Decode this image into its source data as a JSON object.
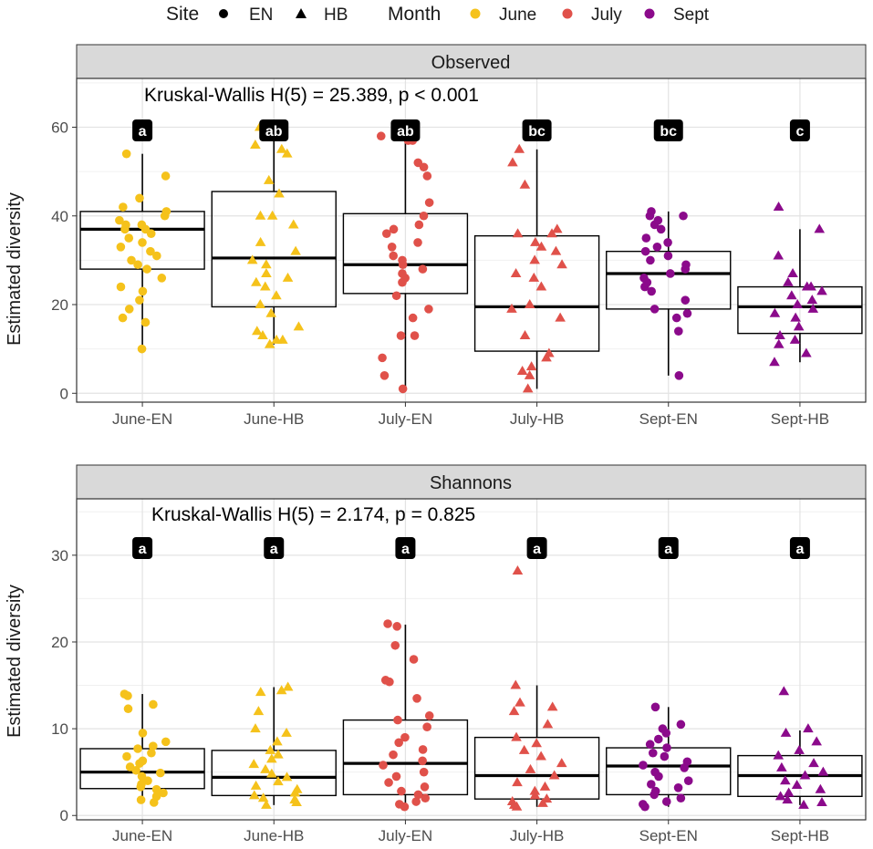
{
  "legend": {
    "site_title": "Site",
    "site_entries": [
      {
        "label": "EN",
        "shape": "circle"
      },
      {
        "label": "HB",
        "shape": "triangle"
      }
    ],
    "month_title": "Month",
    "month_entries": [
      {
        "label": "June",
        "color": "#f5c21b"
      },
      {
        "label": "July",
        "color": "#e0514a"
      },
      {
        "label": "Sept",
        "color": "#8b0a8b"
      }
    ]
  },
  "chart_data": [
    {
      "type": "box",
      "title": "Observed",
      "annotation": "Kruskal-Wallis   H(5) = 25.389, p < 0.001",
      "xlabel": "",
      "ylabel": "Estimated diversity",
      "ylim": [
        -2,
        71
      ],
      "yticks": [
        0,
        20,
        40,
        60
      ],
      "categories": [
        "June-EN",
        "June-HB",
        "July-EN",
        "July-HB",
        "Sept-EN",
        "Sept-HB"
      ],
      "colors": [
        "#f5c21b",
        "#f5c21b",
        "#e0514a",
        "#e0514a",
        "#8b0a8b",
        "#8b0a8b"
      ],
      "shapes": [
        "circle",
        "triangle",
        "circle",
        "triangle",
        "circle",
        "triangle"
      ],
      "letters": [
        "a",
        "ab",
        "ab",
        "bc",
        "bc",
        "c"
      ],
      "boxes": [
        {
          "min": 10,
          "q1": 28,
          "median": 37,
          "q3": 41,
          "max": 54
        },
        {
          "min": 11,
          "q1": 19.5,
          "median": 30.5,
          "q3": 45.5,
          "max": 60
        },
        {
          "min": 1,
          "q1": 22.5,
          "median": 29,
          "q3": 40.5,
          "max": 58
        },
        {
          "min": 1,
          "q1": 9.5,
          "median": 19.5,
          "q3": 35.5,
          "max": 55
        },
        {
          "min": 4,
          "q1": 19,
          "median": 27,
          "q3": 32,
          "max": 41
        },
        {
          "min": 7,
          "q1": 13.5,
          "median": 19.5,
          "q3": 24,
          "max": 37
        }
      ],
      "points": [
        [
          10,
          16,
          17,
          19,
          21,
          23,
          24,
          26,
          28,
          29,
          30,
          31,
          32,
          33,
          34,
          35,
          36,
          37,
          37,
          38,
          38,
          39,
          40,
          41,
          42,
          44,
          49,
          54
        ],
        [
          11,
          12,
          12,
          13,
          14,
          15,
          18,
          20,
          22,
          24,
          25,
          26,
          27,
          29,
          30,
          32,
          34,
          38,
          40,
          40,
          45,
          48,
          54,
          55,
          56,
          60
        ],
        [
          1,
          4,
          8,
          13,
          13,
          17,
          19,
          22,
          25,
          26,
          27,
          28,
          29,
          30,
          31,
          33,
          34,
          36,
          37,
          38,
          40,
          43,
          49,
          51,
          52,
          57,
          57,
          58
        ],
        [
          1,
          4,
          5,
          6,
          8,
          9,
          13,
          17,
          19,
          20,
          24,
          26,
          27,
          29,
          30,
          32,
          33,
          34,
          36,
          36,
          37,
          47,
          52,
          55
        ],
        [
          4,
          14,
          17,
          18,
          19,
          21,
          23,
          24,
          25,
          26,
          27,
          28,
          29,
          30,
          31,
          32,
          33,
          34,
          35,
          37,
          38,
          39,
          40,
          40,
          41
        ],
        [
          7,
          9,
          11,
          12,
          13,
          15,
          17,
          18,
          19,
          20,
          21,
          22,
          23,
          24,
          24,
          25,
          27,
          31,
          37,
          42
        ]
      ]
    },
    {
      "type": "box",
      "title": "Shannons",
      "annotation": "Kruskal-Wallis   H(5) = 2.174, p = 0.825",
      "xlabel": "",
      "ylabel": "Estimated diversity",
      "ylim": [
        -0.5,
        36.5
      ],
      "yticks": [
        0,
        10,
        20,
        30
      ],
      "categories": [
        "June-EN",
        "June-HB",
        "July-EN",
        "July-HB",
        "Sept-EN",
        "Sept-HB"
      ],
      "colors": [
        "#f5c21b",
        "#f5c21b",
        "#e0514a",
        "#e0514a",
        "#8b0a8b",
        "#8b0a8b"
      ],
      "shapes": [
        "circle",
        "triangle",
        "circle",
        "triangle",
        "circle",
        "triangle"
      ],
      "letters": [
        "a",
        "a",
        "a",
        "a",
        "a",
        "a"
      ],
      "boxes": [
        {
          "min": 1.5,
          "q1": 3.1,
          "median": 5,
          "q3": 7.7,
          "max": 14
        },
        {
          "min": 1.2,
          "q1": 2.3,
          "median": 4.4,
          "q3": 7.5,
          "max": 14.8
        },
        {
          "min": 1,
          "q1": 2.4,
          "median": 6,
          "q3": 11,
          "max": 22
        },
        {
          "min": 1,
          "q1": 1.9,
          "median": 4.6,
          "q3": 9,
          "max": 15
        },
        {
          "min": 1,
          "q1": 2.4,
          "median": 5.7,
          "q3": 7.8,
          "max": 12.5
        },
        {
          "min": 1.2,
          "q1": 2.2,
          "median": 4.6,
          "q3": 6.9,
          "max": 9.8
        }
      ],
      "points": [
        [
          1.5,
          1.8,
          2.2,
          2.6,
          3.0,
          3.3,
          3.6,
          4.0,
          4.5,
          4.9,
          5.2,
          5.6,
          6.0,
          6.3,
          6.8,
          7.2,
          7.7,
          8.0,
          8.5,
          9.5,
          12.3,
          12.8,
          13.8,
          14.0
        ],
        [
          1.2,
          1.5,
          1.8,
          2.0,
          2.3,
          2.6,
          3.0,
          3.4,
          3.9,
          4.4,
          4.8,
          5.3,
          5.9,
          6.5,
          7.0,
          7.5,
          8.5,
          9.5,
          10.0,
          12.0,
          14.2,
          14.4,
          14.8
        ],
        [
          1,
          1.3,
          1.6,
          2.0,
          2.4,
          2.8,
          3.3,
          3.8,
          4.5,
          5.0,
          5.8,
          6.3,
          7.0,
          7.6,
          8.4,
          9.0,
          10.2,
          11.0,
          11.5,
          13.5,
          15.4,
          15.6,
          18.0,
          19.6,
          21.8,
          22.1
        ],
        [
          1,
          1.2,
          1.4,
          1.6,
          1.9,
          2.3,
          2.8,
          3.3,
          3.8,
          4.6,
          5.3,
          6.0,
          6.8,
          7.5,
          8.3,
          9.0,
          10.5,
          12.0,
          12.5,
          13.0,
          15.0,
          28.2
        ],
        [
          1,
          1.3,
          1.6,
          2.0,
          2.4,
          2.8,
          3.2,
          3.6,
          4.0,
          4.5,
          5.0,
          5.5,
          5.8,
          6.2,
          6.8,
          7.2,
          7.8,
          8.2,
          8.8,
          9.5,
          10.0,
          10.5,
          12.5
        ],
        [
          1.2,
          1.5,
          1.8,
          2.2,
          2.6,
          3.0,
          3.5,
          4.0,
          4.6,
          5.0,
          5.5,
          6.0,
          6.9,
          7.5,
          8.5,
          9.5,
          10.0,
          14.3
        ]
      ]
    }
  ]
}
